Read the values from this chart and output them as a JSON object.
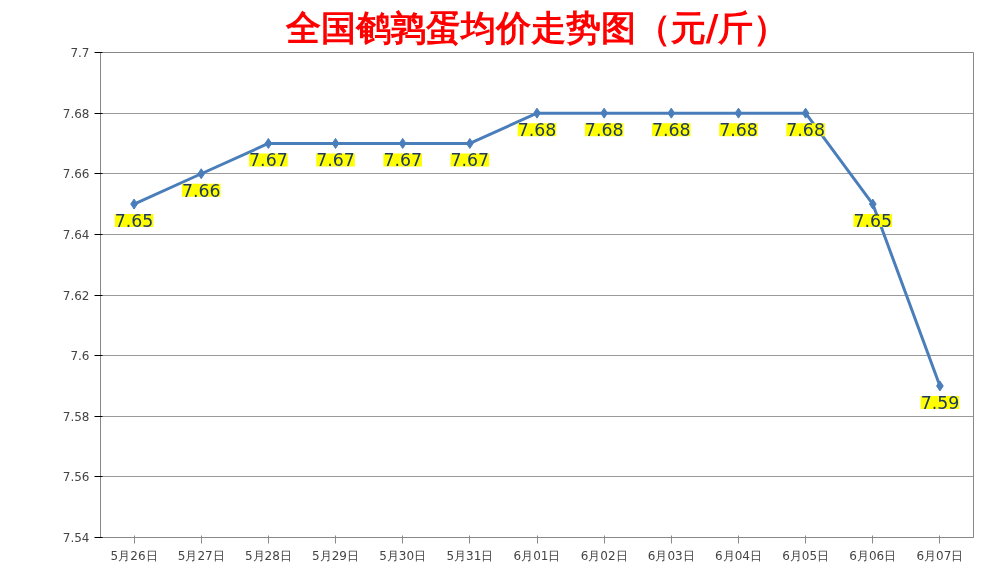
{
  "chart_data": {
    "type": "line",
    "title": "全国鹌鹑蛋均价走势图（元/斤）",
    "categories": [
      "5月26日",
      "5月27日",
      "5月28日",
      "5月29日",
      "5月30日",
      "5月31日",
      "6月01日",
      "6月02日",
      "6月03日",
      "6月04日",
      "6月05日",
      "6月06日",
      "6月07日"
    ],
    "series": [
      {
        "color": "#4a7ebb",
        "values": [
          7.65,
          7.66,
          7.67,
          7.67,
          7.67,
          7.67,
          7.68,
          7.68,
          7.68,
          7.68,
          7.68,
          7.65,
          7.59
        ]
      }
    ],
    "ylim": [
      7.54,
      7.7
    ],
    "yticks": [
      7.54,
      7.56,
      7.58,
      {
        "value": 7.6,
        "label": "7.6"
      },
      7.62,
      7.64,
      7.66,
      7.68,
      {
        "value": 7.7,
        "label": "7.7"
      }
    ],
    "grid": "y",
    "marker": "diamond",
    "line_style": "solid",
    "data_labels": true
  }
}
